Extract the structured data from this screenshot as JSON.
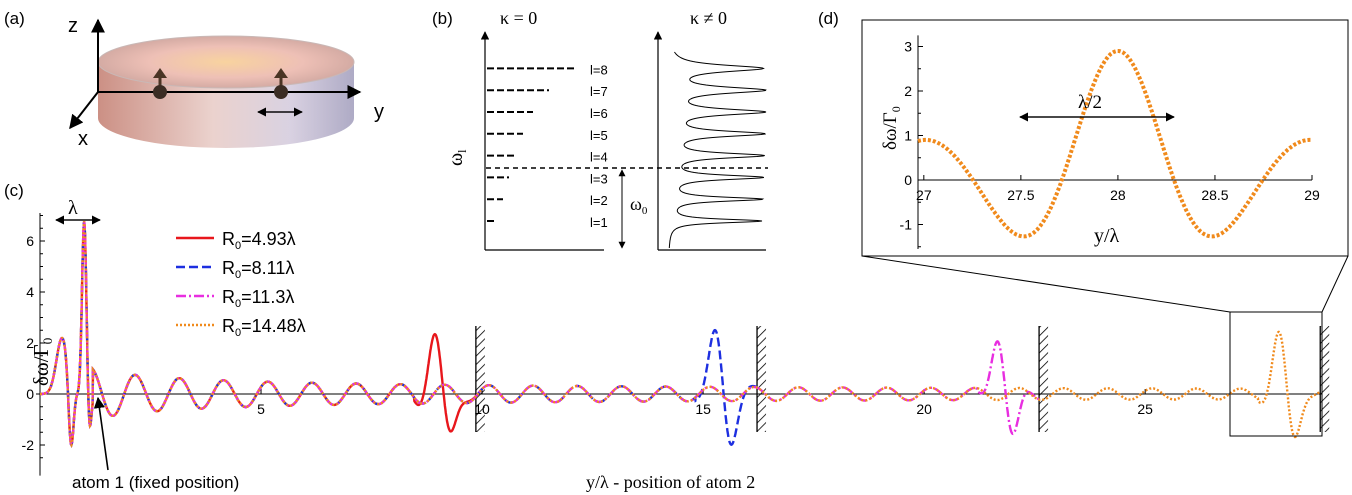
{
  "panels": {
    "a": {
      "label": "(a)",
      "axes": {
        "z": "z",
        "y": "y",
        "x": "x"
      }
    },
    "b": {
      "label": "(b)",
      "title_left": "κ = 0",
      "title_right": "κ ≠ 0",
      "ylabel": "ω",
      "ylabel_sub": "l",
      "omega0": "ω",
      "omega0_sub": "0",
      "levels": [
        "l=1",
        "l=2",
        "l=3",
        "l=4",
        "l=5",
        "l=6",
        "l=7",
        "l=8"
      ]
    },
    "c": {
      "label": "(c)",
      "lambda_label": "λ",
      "ylabel": "δω/Γ",
      "ylabel_sub": "0",
      "xlabel": "y/λ  - position of atom 2",
      "annotation": "atom 1 (fixed position)",
      "yticks": [
        "-2",
        "0",
        "2",
        "4",
        "6"
      ],
      "xticks": [
        "5",
        "10",
        "15",
        "20",
        "25"
      ],
      "legend": [
        {
          "label": "R",
          "sub": "0",
          "value": "=4.93λ",
          "color": "#e8171c"
        },
        {
          "label": "R",
          "sub": "0",
          "value": "=8.11λ",
          "color": "#1d2fe0"
        },
        {
          "label": "R",
          "sub": "0",
          "value": "=11.3λ",
          "color": "#e82ee0"
        },
        {
          "label": "R",
          "sub": "0",
          "value": "=14.48λ",
          "color": "#f08a1c"
        }
      ]
    },
    "d": {
      "label": "(d)",
      "ylabel": "δω/Γ",
      "ylabel_sub": "0",
      "xlabel": "y/λ",
      "half_lambda": "λ/2",
      "xticks": [
        "27",
        "27.5",
        "28",
        "28.5",
        "29"
      ],
      "yticks": [
        "-1",
        "0",
        "1",
        "2",
        "3"
      ]
    }
  },
  "chart_data": [
    {
      "type": "line",
      "panel": "c",
      "xlabel": "y/λ  - position of atom 2",
      "ylabel": "δω/Γ0",
      "xlim": [
        0,
        29
      ],
      "ylim": [
        -3,
        7.2
      ],
      "series": [
        {
          "name": "R0=4.93λ",
          "color": "#e8171c",
          "dash": "solid",
          "mirror_at": 9.86,
          "end": 9.86
        },
        {
          "name": "R0=8.11λ",
          "color": "#1d2fe0",
          "dash": "dashed",
          "mirror_at": 16.22,
          "end": 16.22
        },
        {
          "name": "R0=11.3λ",
          "color": "#e82ee0",
          "dash": "dashdot",
          "mirror_at": 22.6,
          "end": 22.6
        },
        {
          "name": "R0=14.48λ",
          "color": "#f08a1c",
          "dash": "dotted",
          "mirror_at": 28.96,
          "end": 28.96
        }
      ],
      "walls": [
        9.86,
        16.22,
        22.6,
        28.96
      ],
      "peaks": {
        "y0.5": 2.2,
        "y1": 6.8,
        "y1.5": -2.6
      }
    },
    {
      "type": "line",
      "panel": "d",
      "xlabel": "y/λ",
      "ylabel": "δω/Γ0",
      "xlim": [
        26.97,
        29
      ],
      "ylim": [
        -1.6,
        3.3
      ],
      "series": [
        {
          "name": "R0=14.48λ",
          "color": "#f08a1c",
          "dash": "dotted"
        }
      ],
      "points": [
        [
          26.97,
          0.45
        ],
        [
          27.35,
          -0.85
        ],
        [
          28.0,
          3.0
        ],
        [
          28.65,
          -1.4
        ],
        [
          29.0,
          0.3
        ]
      ]
    },
    {
      "type": "line",
      "panel": "b",
      "levels_count": 8,
      "omega0_level_between": [
        3,
        4
      ]
    }
  ]
}
